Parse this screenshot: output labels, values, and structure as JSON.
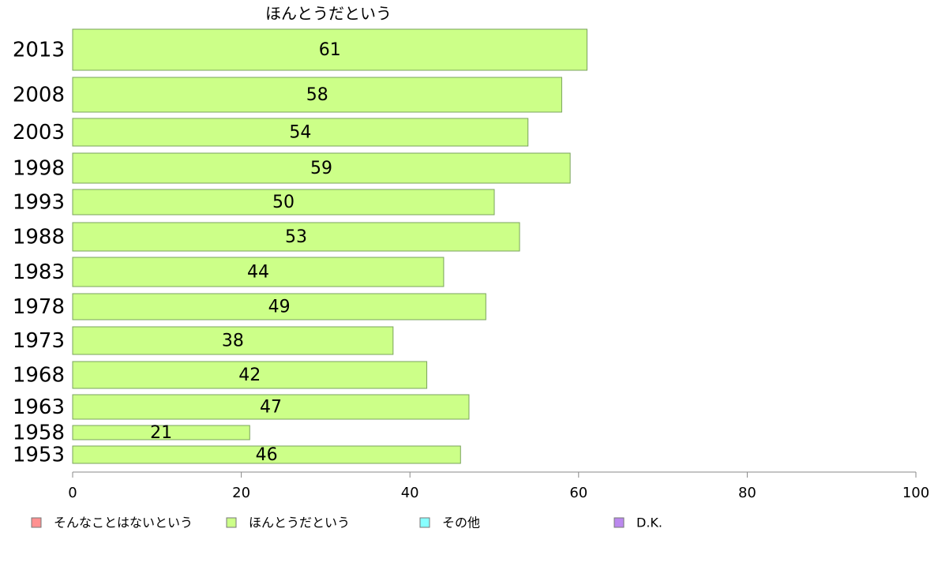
{
  "chart_data": {
    "type": "bar",
    "orientation": "horizontal",
    "title": "ほんとうだという",
    "categories": [
      "2013",
      "2008",
      "2003",
      "1998",
      "1993",
      "1988",
      "1983",
      "1978",
      "1973",
      "1968",
      "1963",
      "1958",
      "1953"
    ],
    "series": [
      {
        "name": "ほんとうだという",
        "values": [
          61,
          58,
          54,
          59,
          50,
          53,
          44,
          49,
          38,
          42,
          47,
          21,
          46
        ],
        "color": "#ccff88"
      }
    ],
    "xlim": [
      0,
      100
    ],
    "xticks": [
      0,
      20,
      40,
      60,
      80,
      100
    ],
    "grid": false,
    "legend_position": "bottom",
    "legend": [
      {
        "label": "そんなことはないという",
        "color": "#ff9090"
      },
      {
        "label": "ほんとうだという",
        "color": "#ccff88"
      },
      {
        "label": "その他",
        "color": "#88ffff"
      },
      {
        "label": "D.K.",
        "color": "#bb88ee"
      }
    ]
  }
}
